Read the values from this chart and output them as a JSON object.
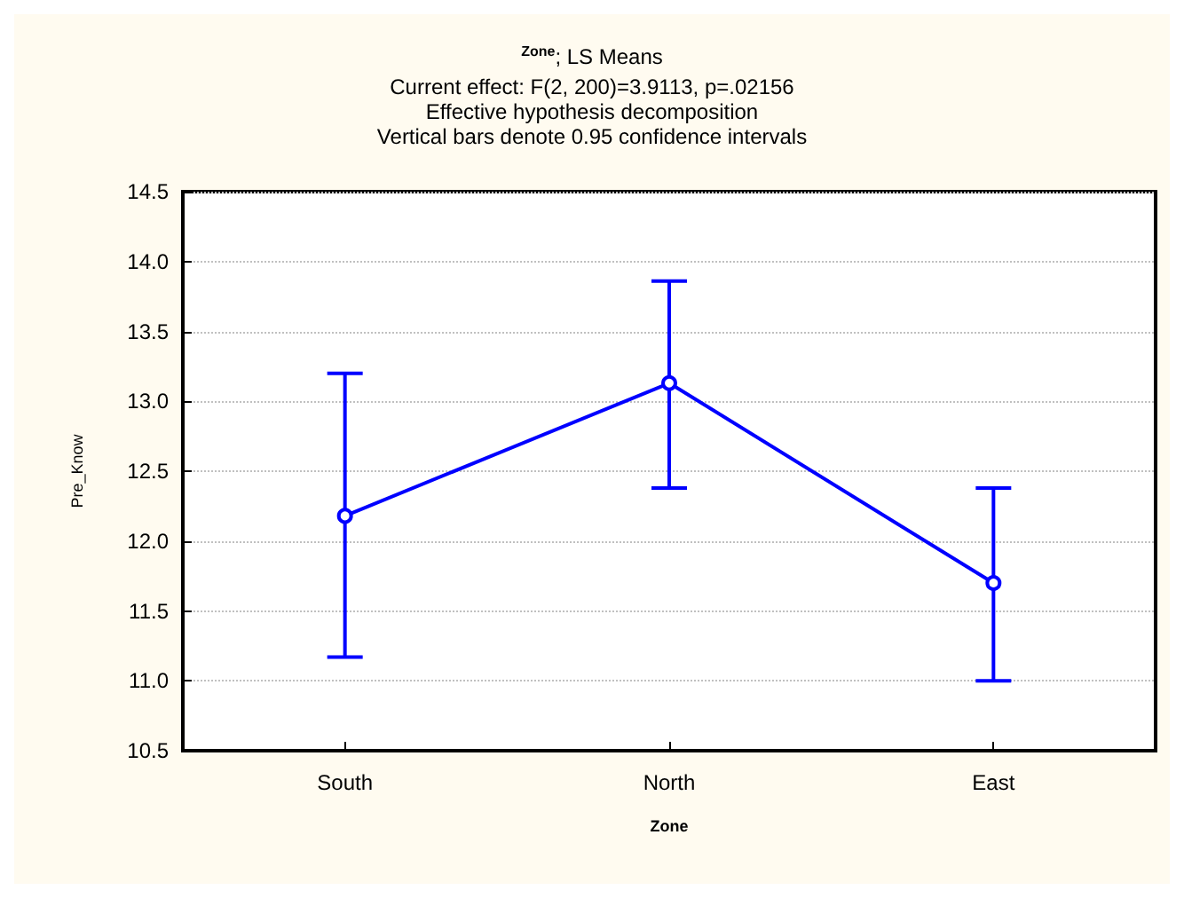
{
  "chart_data": {
    "type": "line",
    "title": "$^{Zone}$; LS Means",
    "subtitle": "Current effect: F(2, 200)=3.9113, p=.02156\nEffective hypothesis decomposition\nVertical bars denote 0.95 confidence intervals",
    "xlabel": "Zone",
    "ylabel": "Pre_Know",
    "categories": [
      "South",
      "North",
      "East"
    ],
    "series": [
      {
        "color": "#0000ff",
        "values": [
          12.18,
          13.13,
          11.7
        ],
        "errors": [
          [
            11.17,
            13.2
          ],
          [
            12.38,
            13.86
          ],
          [
            11.0,
            12.38
          ]
        ]
      }
    ],
    "ylim": [
      10.5,
      14.5
    ],
    "yticks": [
      10.5,
      {
        "value": 11,
        "label": "11.0"
      },
      11.5,
      {
        "value": 12,
        "label": "12.0"
      },
      12.5,
      {
        "value": 13,
        "label": "13.0"
      },
      13.5,
      {
        "value": 14,
        "label": "14.0"
      },
      14.5
    ],
    "grid": true,
    "marker": "circle",
    "line_style": "solid"
  }
}
